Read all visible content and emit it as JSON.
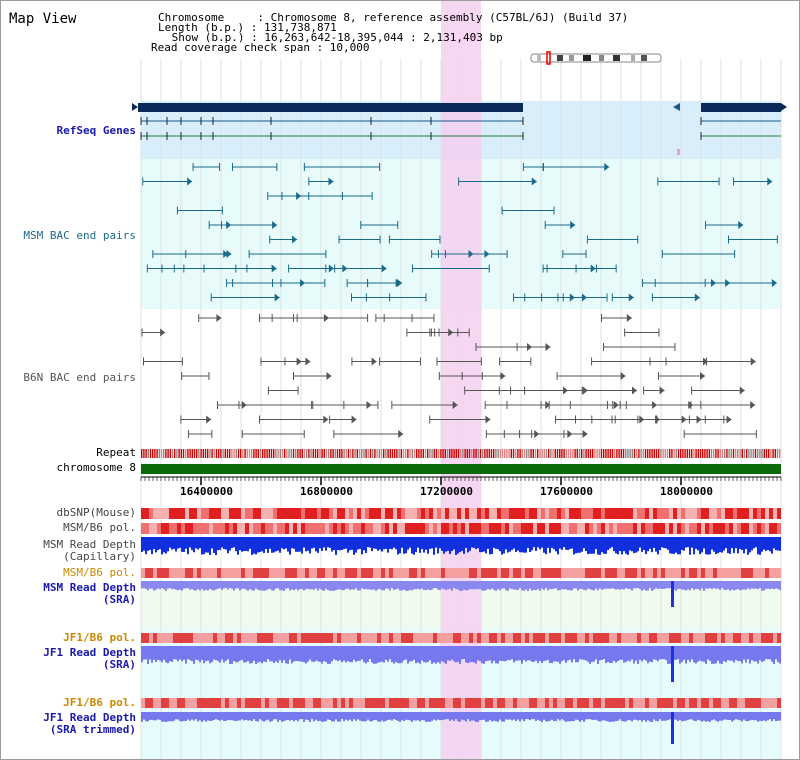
{
  "page": {
    "title": "Map View"
  },
  "header": {
    "chromosome_line": "Chromosome     : Chromosome 8, reference assembly (C57BL/6J) (Build 37)",
    "length_line": "Length (b.p.) : 131,738,871",
    "show_line": " Show (b.p.) : 16,263,642-18,395,044 : 2,131,403 bp",
    "coverage_line": "Read coverage check span : 10,000"
  },
  "tracks": {
    "refseq": "RefSeq Genes",
    "msm_bac": "MSM BAC end pairs",
    "b6n_bac": "B6N BAC end pairs",
    "repeat": "Repeat",
    "chromosome": "chromosome 8",
    "dbsnp": "dbSNP(Mouse)",
    "msm_pol": "MSM/B6 pol.",
    "msm_depth_cap_1": "MSM Read Depth",
    "msm_depth_cap_2": "(Capillary)",
    "msm_pol_2": "MSM/B6 pol.",
    "msm_depth_sra_1": "MSM Read Depth",
    "msm_depth_sra_2": "(SRA)",
    "jf1_pol_1": "JF1/B6 pol.",
    "jf1_depth_sra_1": "JF1 Read Depth",
    "jf1_depth_sra_2": "(SRA)",
    "jf1_pol_2": "JF1/B6 pol.",
    "jf1_depth_trim_1": "JF1 Read Depth",
    "jf1_depth_trim_2": "(SRA trimmed)"
  },
  "axis": {
    "ticks": [
      "16400000",
      "16800000",
      "17200000",
      "17600000",
      "18000000"
    ]
  },
  "colors": {
    "refseq_label": "#1a1aaa",
    "msm_label": "#1a6a8a",
    "b6n_label": "#555555",
    "orange_label": "#cc8800",
    "blue_label": "#1a1aaa",
    "highlight": "#f5d0f0",
    "chromosome_bar": "#0a6a0a"
  }
}
